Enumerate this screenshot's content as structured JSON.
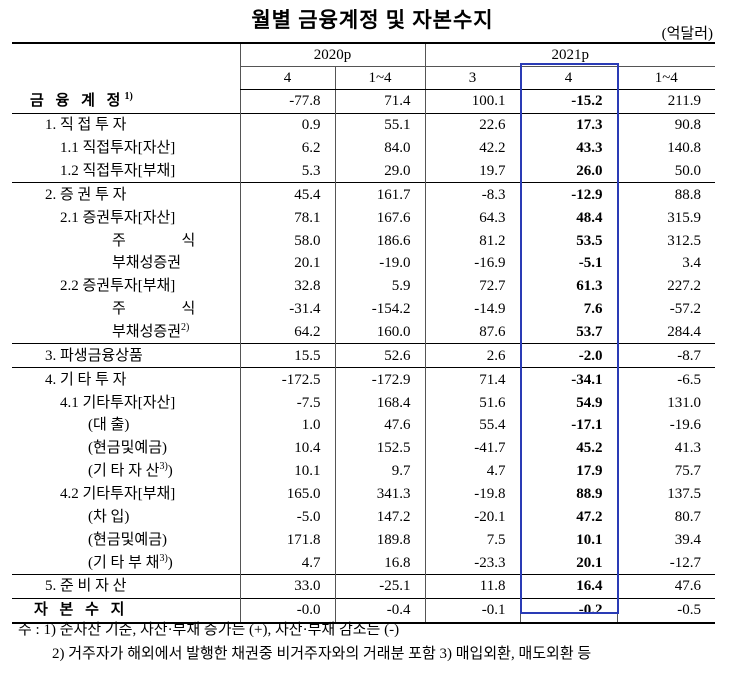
{
  "header": {
    "title": "월별 금융계정 및 자본수지",
    "unit": "(억달러)"
  },
  "table": {
    "years": [
      {
        "label": "2020p",
        "span": 2
      },
      {
        "label": "2021p",
        "span": 3
      }
    ],
    "periods": [
      "4",
      "1~4",
      "3",
      "4",
      "1~4"
    ],
    "rows": [
      {
        "label": "금 융 계 정",
        "note": "1)",
        "values": [
          "-77.8",
          "71.4",
          "100.1",
          "-15.2",
          "211.9"
        ]
      },
      {
        "label": "1. 직 접 투 자",
        "values": [
          "0.9",
          "55.1",
          "22.6",
          "17.3",
          "90.8"
        ]
      },
      {
        "label": "1.1 직접투자[자산]",
        "values": [
          "6.2",
          "84.0",
          "42.2",
          "43.3",
          "140.8"
        ]
      },
      {
        "label": "1.2 직접투자[부채]",
        "values": [
          "5.3",
          "29.0",
          "19.7",
          "26.0",
          "50.0"
        ]
      },
      {
        "label": "2. 증 권 투 자",
        "values": [
          "45.4",
          "161.7",
          "-8.3",
          "-12.9",
          "88.8"
        ]
      },
      {
        "label": "2.1 증권투자[자산]",
        "values": [
          "78.1",
          "167.6",
          "64.3",
          "48.4",
          "315.9"
        ]
      },
      {
        "label": "주 식",
        "values": [
          "58.0",
          "186.6",
          "81.2",
          "53.5",
          "312.5"
        ]
      },
      {
        "label": "부채성증권",
        "values": [
          "20.1",
          "-19.0",
          "-16.9",
          "-5.1",
          "3.4"
        ]
      },
      {
        "label": "2.2 증권투자[부채]",
        "values": [
          "32.8",
          "5.9",
          "72.7",
          "61.3",
          "227.2"
        ]
      },
      {
        "label": "주 식",
        "values": [
          "-31.4",
          "-154.2",
          "-14.9",
          "7.6",
          "-57.2"
        ]
      },
      {
        "label": "부채성증권",
        "note": "2)",
        "values": [
          "64.2",
          "160.0",
          "87.6",
          "53.7",
          "284.4"
        ]
      },
      {
        "label": "3. 파생금융상품",
        "values": [
          "15.5",
          "52.6",
          "2.6",
          "-2.0",
          "-8.7"
        ]
      },
      {
        "label": "4. 기 타 투 자",
        "values": [
          "-172.5",
          "-172.9",
          "71.4",
          "-34.1",
          "-6.5"
        ]
      },
      {
        "label": "4.1 기타투자[자산]",
        "values": [
          "-7.5",
          "168.4",
          "51.6",
          "54.9",
          "131.0"
        ]
      },
      {
        "label": "(대 출)",
        "values": [
          "1.0",
          "47.6",
          "55.4",
          "-17.1",
          "-19.6"
        ]
      },
      {
        "label": "(현금및예금)",
        "values": [
          "10.4",
          "152.5",
          "-41.7",
          "45.2",
          "41.3"
        ]
      },
      {
        "label": "(기 타 자 산",
        "note": "3)",
        "label_end": ")",
        "values": [
          "10.1",
          "9.7",
          "4.7",
          "17.9",
          "75.7"
        ]
      },
      {
        "label": "4.2 기타투자[부채]",
        "values": [
          "165.0",
          "341.3",
          "-19.8",
          "88.9",
          "137.5"
        ]
      },
      {
        "label": "(차 입)",
        "values": [
          "-5.0",
          "147.2",
          "-20.1",
          "47.2",
          "80.7"
        ]
      },
      {
        "label": "(현금및예금)",
        "values": [
          "171.8",
          "189.8",
          "7.5",
          "10.1",
          "39.4"
        ]
      },
      {
        "label": "(기 타 부 채",
        "note": "3)",
        "label_end": ")",
        "values": [
          "4.7",
          "16.8",
          "-23.3",
          "20.1",
          "-12.7"
        ]
      },
      {
        "label": "5. 준 비 자 산",
        "values": [
          "33.0",
          "-25.1",
          "11.8",
          "16.4",
          "47.6"
        ]
      },
      {
        "label": "자 본 수 지",
        "values": [
          "-0.0",
          "-0.4",
          "-0.1",
          "-0.2",
          "-0.5"
        ]
      }
    ]
  },
  "notes": [
    "주 : 1) 순자산 기준, 자산·부채 증가는 (+), 자산·부채 감소는 (-)",
    "2) 거주자가 해외에서 발행한 채권중 비거주자와의 거래분 포함   3) 매입외환, 매도외환 등"
  ]
}
